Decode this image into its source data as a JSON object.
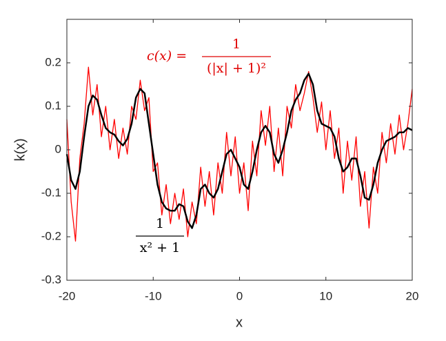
{
  "chart_data": {
    "type": "line",
    "xlabel": "x",
    "ylabel": "k(x)",
    "xlim": [
      -20,
      20
    ],
    "ylim": [
      -0.3,
      0.3
    ],
    "xticks": [
      -20,
      -10,
      0,
      10,
      20
    ],
    "yticks": [
      -0.3,
      -0.2,
      -0.1,
      0,
      0.1,
      0.2
    ],
    "grid": false,
    "x": [
      -20,
      -19.5,
      -19,
      -18.5,
      -18,
      -17.5,
      -17,
      -16.5,
      -16,
      -15.5,
      -15,
      -14.5,
      -14,
      -13.5,
      -13,
      -12.5,
      -12,
      -11.5,
      -11,
      -10.5,
      -10,
      -9.5,
      -9,
      -8.5,
      -8,
      -7.5,
      -7,
      -6.5,
      -6,
      -5.5,
      -5,
      -4.5,
      -4,
      -3.5,
      -3,
      -2.5,
      -2,
      -1.5,
      -1,
      -0.5,
      0,
      0.5,
      1,
      1.5,
      2,
      2.5,
      3,
      3.5,
      4,
      4.5,
      5,
      5.5,
      6,
      6.5,
      7,
      7.5,
      8,
      8.5,
      9,
      9.5,
      10,
      10.5,
      11,
      11.5,
      12,
      12.5,
      13,
      13.5,
      14,
      14.5,
      15,
      15.5,
      16,
      16.5,
      17,
      17.5,
      18,
      18.5,
      19,
      19.5,
      20
    ],
    "series": [
      {
        "color": "#ff0000",
        "width": 1.3,
        "values": [
          0.07,
          -0.12,
          -0.21,
          -0.02,
          0.06,
          0.19,
          0.08,
          0.15,
          0.03,
          0.1,
          0.0,
          0.07,
          -0.02,
          0.05,
          -0.01,
          0.1,
          0.07,
          0.16,
          0.09,
          0.12,
          -0.05,
          -0.03,
          -0.15,
          -0.08,
          -0.17,
          -0.1,
          -0.16,
          -0.09,
          -0.2,
          -0.12,
          -0.17,
          -0.04,
          -0.13,
          -0.05,
          -0.15,
          -0.03,
          -0.1,
          0.04,
          -0.06,
          0.03,
          -0.1,
          -0.03,
          -0.14,
          0.02,
          -0.06,
          0.09,
          0.01,
          0.1,
          -0.05,
          0.05,
          -0.06,
          0.1,
          0.05,
          0.15,
          0.09,
          0.13,
          0.18,
          0.12,
          0.04,
          0.11,
          0.0,
          0.09,
          -0.02,
          0.05,
          -0.1,
          0.02,
          -0.07,
          0.03,
          -0.13,
          -0.05,
          -0.18,
          -0.04,
          -0.1,
          0.04,
          -0.03,
          0.06,
          -0.01,
          0.08,
          0.0,
          0.06,
          0.14
        ]
      },
      {
        "color": "#000000",
        "width": 2.5,
        "values": [
          -0.01,
          -0.07,
          -0.09,
          -0.05,
          0.03,
          0.1,
          0.125,
          0.115,
          0.08,
          0.05,
          0.04,
          0.035,
          0.02,
          0.01,
          0.025,
          0.06,
          0.12,
          0.14,
          0.13,
          0.06,
          -0.01,
          -0.08,
          -0.12,
          -0.135,
          -0.14,
          -0.14,
          -0.125,
          -0.13,
          -0.165,
          -0.18,
          -0.15,
          -0.09,
          -0.08,
          -0.1,
          -0.11,
          -0.09,
          -0.05,
          -0.01,
          0.0,
          -0.02,
          -0.04,
          -0.08,
          -0.09,
          -0.05,
          0.0,
          0.04,
          0.055,
          0.04,
          -0.01,
          -0.03,
          0.0,
          0.04,
          0.09,
          0.115,
          0.13,
          0.16,
          0.175,
          0.15,
          0.09,
          0.06,
          0.055,
          0.05,
          0.03,
          -0.02,
          -0.05,
          -0.04,
          -0.02,
          -0.02,
          -0.06,
          -0.11,
          -0.115,
          -0.08,
          -0.03,
          0.0,
          0.02,
          0.025,
          0.03,
          0.04,
          0.04,
          0.05,
          0.045
        ]
      }
    ],
    "annotations": [
      {
        "lhs": "c(x) =",
        "numerator": "1",
        "denominator": "(|x| + 1)²",
        "color": "#e00000"
      },
      {
        "numerator": "1",
        "denominator": "x² + 1",
        "color": "#000000"
      }
    ]
  }
}
